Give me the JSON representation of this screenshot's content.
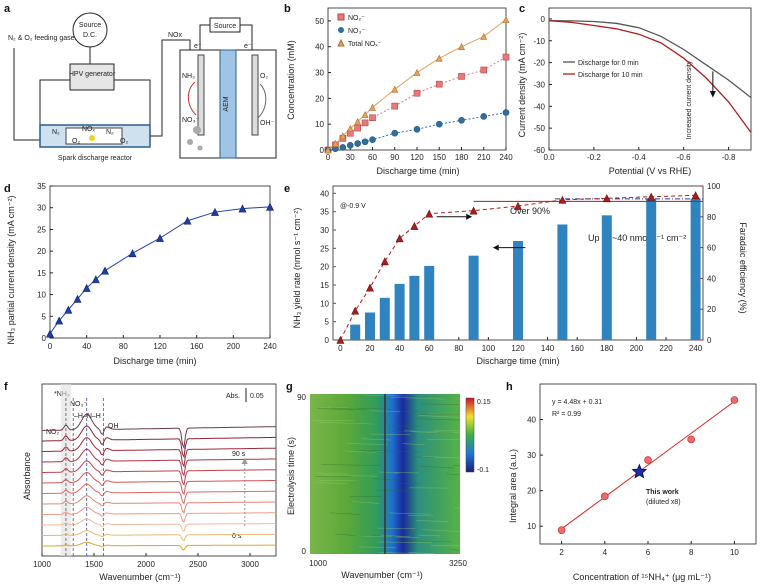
{
  "panel_a": {
    "label": "a",
    "feed_gas": "N₂ & O₂ feeding gases",
    "source1": "Source",
    "source1_sub": "D.C.",
    "generator": "HPV generator",
    "reactor": "Spark discharge reactor",
    "nox_label": "NOx",
    "source2": "Source",
    "electron1": "e⁻",
    "electron2": "e⁻",
    "nh3": "NH₃",
    "no3": "NO₃⁻",
    "aem": "AEM",
    "o2": "O₂",
    "oh": "OH⁻",
    "reactor_species": [
      "N₂",
      "NOₓ",
      "N₂",
      "O₂",
      "O₂"
    ]
  },
  "chart_b": {
    "label": "b",
    "type": "line",
    "xlabel": "Discharge time (min)",
    "ylabel": "Concentration (mM)",
    "xlim": [
      0,
      240
    ],
    "ylim": [
      0,
      55
    ],
    "xticks": [
      0,
      30,
      60,
      90,
      120,
      150,
      180,
      210,
      240
    ],
    "yticks": [
      0,
      10,
      20,
      30,
      40,
      50
    ],
    "x": [
      0,
      10,
      20,
      30,
      40,
      50,
      60,
      90,
      120,
      150,
      180,
      210,
      240
    ],
    "series": [
      {
        "name": "NO₂⁻",
        "color": "#e8787a",
        "marker": "square",
        "values": [
          0,
          2,
          4.5,
          6.5,
          8.5,
          10.5,
          12.5,
          17,
          22,
          25.5,
          28.5,
          31,
          36
        ]
      },
      {
        "name": "NO₃⁻",
        "color": "#2e6fa0",
        "marker": "circle",
        "values": [
          0,
          0.5,
          1,
          1.8,
          2.5,
          3.2,
          4,
          6.5,
          8,
          10,
          11.5,
          13,
          14.5
        ]
      },
      {
        "name": "Total NOₓ⁻",
        "color": "#e6a25a",
        "marker": "triangle",
        "values": [
          0,
          2.5,
          5.5,
          8.3,
          11,
          13.7,
          16.5,
          23.5,
          30,
          35.5,
          40,
          44,
          50.5
        ]
      }
    ]
  },
  "chart_c": {
    "label": "c",
    "type": "line",
    "xlabel": "Potential (V vs RHE)",
    "ylabel": "Current density (mA cm⁻²)",
    "xlim": [
      0,
      -0.9
    ],
    "ylim": [
      -60,
      5
    ],
    "xticks": [
      "0.0",
      "-0.2",
      "-0.4",
      "-0.6",
      "-0.8"
    ],
    "yticks": [
      "0",
      "-10",
      "-20",
      "-30",
      "-40",
      "-50",
      "-60"
    ],
    "annotation": "Increased current density",
    "series": [
      {
        "name": "Discharge for 0 min",
        "color": "#555555",
        "points": [
          [
            0,
            -0.8
          ],
          [
            -0.1,
            -0.9
          ],
          [
            -0.2,
            -1.2
          ],
          [
            -0.3,
            -2
          ],
          [
            -0.4,
            -4
          ],
          [
            -0.5,
            -8
          ],
          [
            -0.6,
            -14
          ],
          [
            -0.7,
            -21
          ],
          [
            -0.8,
            -28
          ],
          [
            -0.9,
            -36
          ]
        ]
      },
      {
        "name": "Discharge for 10 min",
        "color": "#b02020",
        "points": [
          [
            0,
            -0.8
          ],
          [
            -0.1,
            -1.6
          ],
          [
            -0.2,
            -3
          ],
          [
            -0.3,
            -4.5
          ],
          [
            -0.4,
            -7
          ],
          [
            -0.5,
            -11
          ],
          [
            -0.6,
            -18
          ],
          [
            -0.7,
            -27
          ],
          [
            -0.8,
            -38
          ],
          [
            -0.9,
            -52
          ]
        ]
      }
    ]
  },
  "chart_d": {
    "label": "d",
    "type": "line",
    "xlabel": "Discharge time (min)",
    "ylabel": "NH₃ partial current density (mA cm⁻²)",
    "xlim": [
      0,
      240
    ],
    "ylim": [
      0,
      35
    ],
    "xticks": [
      0,
      40,
      80,
      120,
      160,
      200,
      240
    ],
    "yticks": [
      0,
      5,
      10,
      15,
      20,
      25,
      30,
      35
    ],
    "x": [
      0,
      10,
      20,
      30,
      40,
      50,
      60,
      90,
      120,
      150,
      180,
      210,
      240
    ],
    "values": [
      1,
      4,
      6.5,
      9,
      11.5,
      13.5,
      15.5,
      19.5,
      23,
      27,
      29,
      29.8,
      30.2
    ],
    "color": "#1f3fa8"
  },
  "chart_e": {
    "label": "e",
    "type": "bar",
    "potential": "@-0.9 V",
    "xlabel": "Discharge time (min)",
    "ylabel_left": "NH₃ yield rate (nmol s⁻¹ cm⁻²)",
    "ylabel_right": "Faradaic efficiency (%)",
    "xticks": [
      0,
      20,
      40,
      60,
      80,
      100,
      120,
      140,
      160,
      180,
      200,
      220,
      240
    ],
    "yticks_left": [
      0,
      5,
      10,
      15,
      20,
      25,
      30,
      35,
      40
    ],
    "yticks_right": [
      0,
      20,
      40,
      60,
      80,
      100
    ],
    "x": [
      10,
      20,
      30,
      40,
      50,
      60,
      90,
      120,
      150,
      180,
      210,
      240
    ],
    "yield": [
      4.2,
      7.5,
      11.5,
      15.3,
      17.5,
      20.2,
      23,
      27,
      31.5,
      34,
      38.5,
      38.5
    ],
    "fe_x": [
      0,
      10,
      20,
      30,
      40,
      50,
      60,
      90,
      120,
      150,
      180,
      210,
      240
    ],
    "fe": [
      0,
      19,
      34,
      51,
      66,
      74,
      82,
      84,
      87,
      91,
      92,
      93,
      94
    ],
    "annot_fe": "Over 90%",
    "annot_yield": "Up to ~40 nmol s⁻¹ cm⁻²",
    "bar_color": "#2f84c0",
    "fe_color": "#a81e1e"
  },
  "chart_f": {
    "label": "f",
    "type": "line",
    "xlabel": "Wavenumber (cm⁻¹)",
    "ylabel": "Absorbance",
    "xticks": [
      "1000",
      "1500",
      "2000",
      "2500",
      "3000"
    ],
    "scale": "Abs.",
    "scale_value": "0.05",
    "peak_labels": [
      "NO₂⁻",
      "*NH₃",
      "NO₃⁻",
      "–H–N–H",
      "OH"
    ],
    "time_top": "90 s",
    "time_bottom": "0 s",
    "n_spectra": 12
  },
  "chart_g": {
    "label": "g",
    "type": "heatmap",
    "xlabel": "Wavenumber (cm⁻¹)",
    "ylabel": "Electrolysis time (s)",
    "x_start": "1000",
    "x_end": "3250",
    "y_top": "90",
    "y_bottom": "0",
    "cbar_max": "0.15",
    "cbar_min": "-0.1"
  },
  "chart_h": {
    "label": "h",
    "type": "scatter",
    "xlabel": "Concentration of ¹⁵NH₄⁺ (μg mL⁻¹)",
    "ylabel": "Integral area (a.u.)",
    "xlim": [
      1,
      11
    ],
    "ylim": [
      5,
      50
    ],
    "xticks": [
      2,
      4,
      6,
      8,
      10
    ],
    "yticks": [
      10,
      20,
      30,
      40
    ],
    "x": [
      2,
      4,
      6,
      8,
      10
    ],
    "values": [
      8.9,
      18.4,
      28.6,
      34.4,
      45.5
    ],
    "fit": "y = 4.48x + 0.31",
    "r2": "R² = 0.99",
    "work_x": 5.6,
    "work_y": 25.3,
    "work_label": "This work",
    "work_sub": "(diluted x8)"
  }
}
